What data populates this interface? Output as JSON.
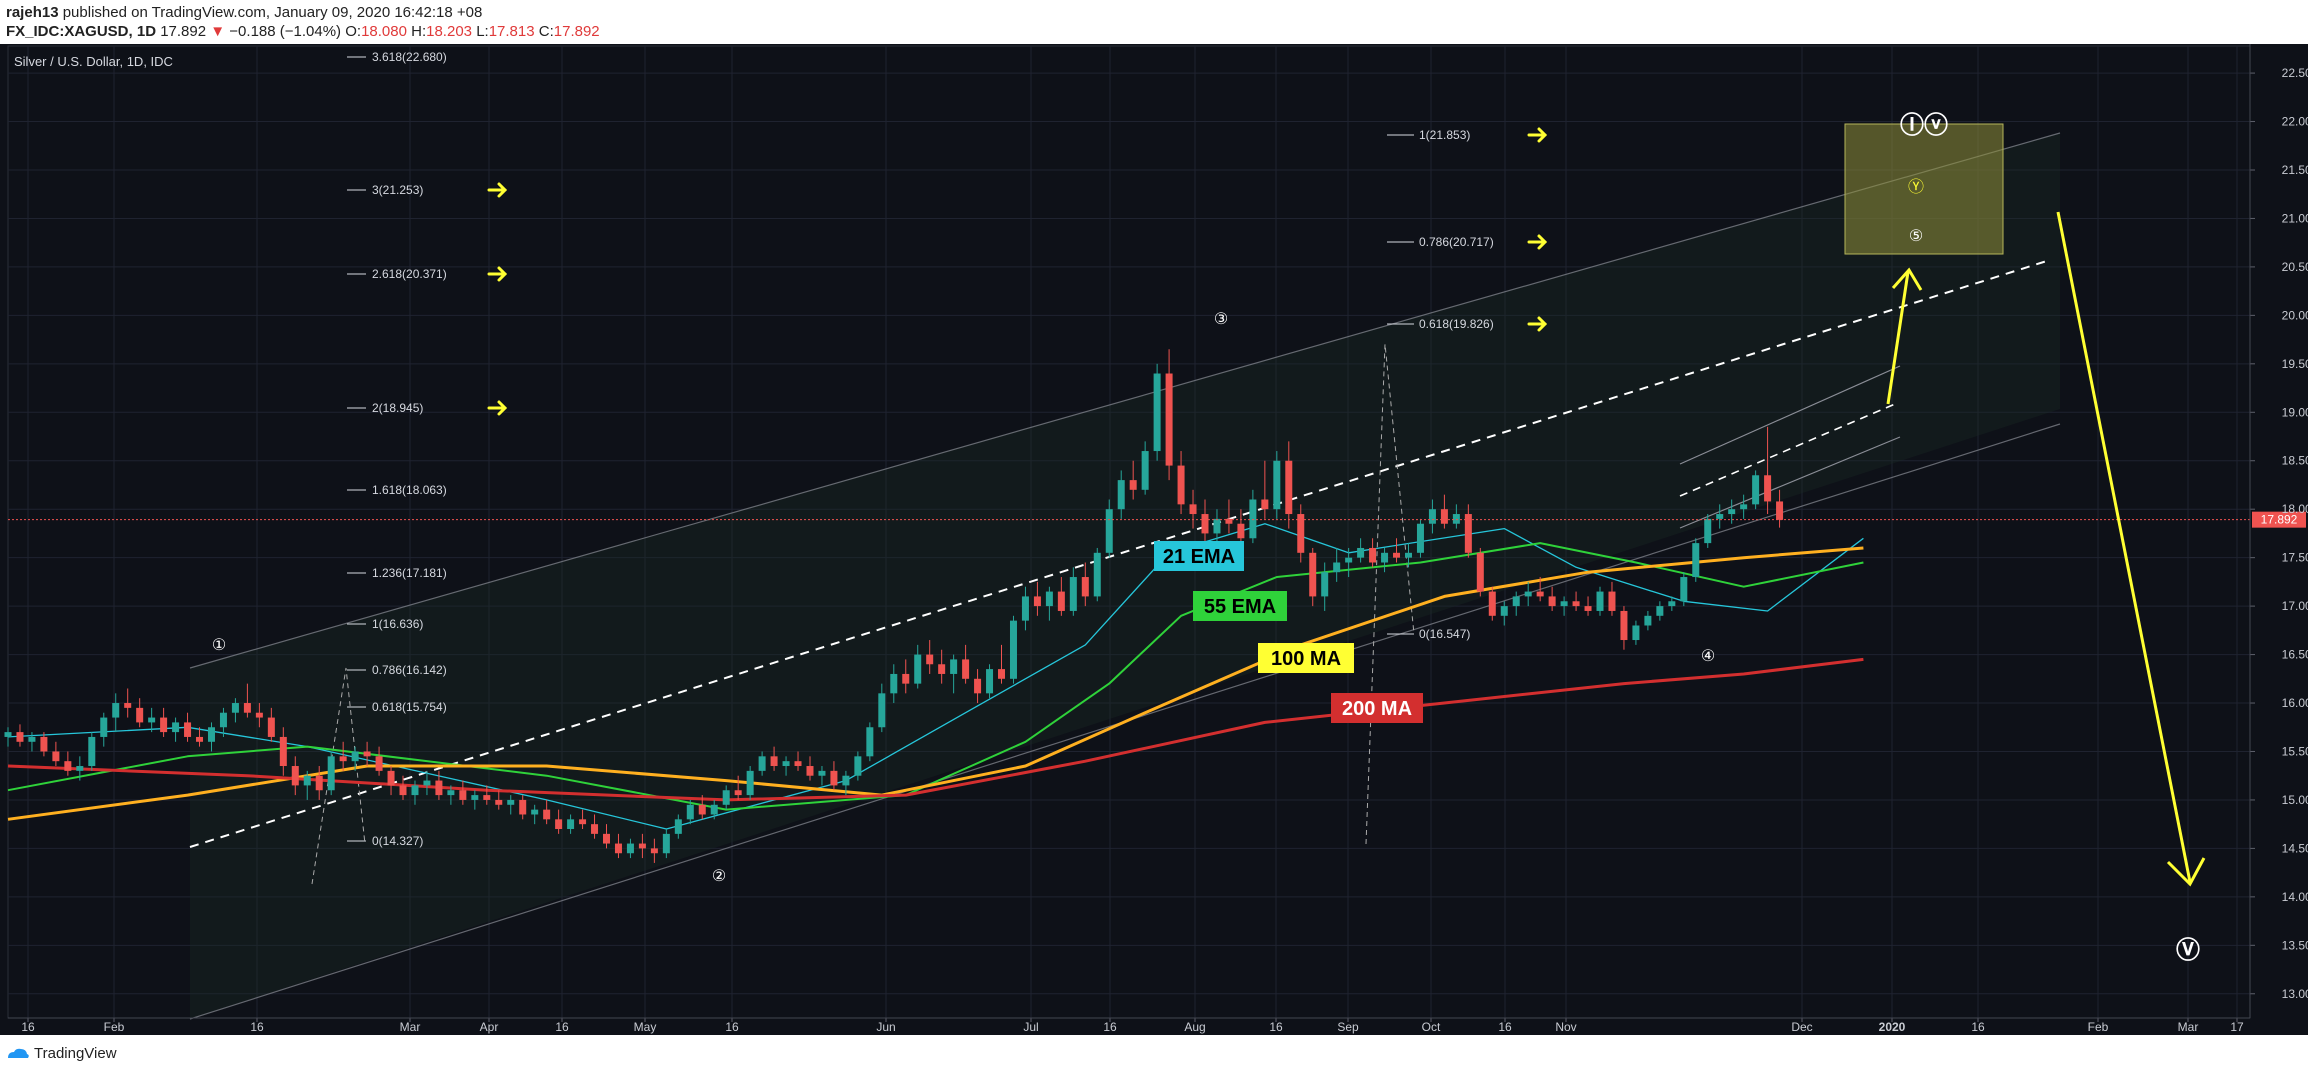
{
  "header": {
    "user": "rajeh13",
    "published_text": "published on TradingView.com, January 09, 2020 16:42:18 +08",
    "symbol": "FX_IDC:XAGUSD, 1D",
    "price": "17.892",
    "change_arrow": "▼",
    "change": "−0.188 (−1.04%)",
    "open_label": "O:",
    "open": "18.080",
    "high_label": "H:",
    "high": "18.203",
    "low_label": "L:",
    "low": "17.813",
    "close_label": "C:",
    "close": "17.892"
  },
  "footer": {
    "brand": "TradingView"
  },
  "colors": {
    "background": "#0e1118",
    "grid": "#1f2330",
    "up": "#26a69a",
    "down": "#ef5350",
    "ema21": "#26c6da",
    "ema55": "#2fd23a",
    "ma100": "#ffb020",
    "ma200": "#d32f2f",
    "annotation": "#ffff33",
    "price_label_bg": "#ef5350"
  },
  "chart_data": {
    "type": "candlestick",
    "title": "Silver / U.S. Dollar, 1D, IDC",
    "xlabel": "",
    "ylabel": "",
    "ylim": [
      12.75,
      22.8
    ],
    "ytick_values": [
      13,
      13.5,
      14,
      14.5,
      15,
      15.5,
      16,
      16.5,
      17,
      17.5,
      18,
      18.5,
      19,
      19.5,
      20,
      20.5,
      21,
      21.5,
      22,
      22.5
    ],
    "ytick_labels": [
      "13.000",
      "13.500",
      "14.000",
      "14.500",
      "15.000",
      "15.500",
      "16.000",
      "16.500",
      "17.000",
      "17.500",
      "18.000",
      "18.500",
      "19.000",
      "19.500",
      "20.000",
      "20.500",
      "21.000",
      "21.500",
      "22.000",
      "22.500"
    ],
    "xtick_labels": [
      "16",
      "Feb",
      "16",
      "Mar",
      "Apr",
      "16",
      "May",
      "16",
      "Jun",
      "Jul",
      "16",
      "Aug",
      "16",
      "Sep",
      "Oct",
      "16",
      "Nov",
      "Dec",
      "2020",
      "16",
      "Feb",
      "Mar",
      "17"
    ],
    "last_price": 17.892,
    "last_price_label": "17.892",
    "grid": true,
    "candles": [
      [
        15.65,
        15.75,
        15.55,
        15.7
      ],
      [
        15.7,
        15.78,
        15.55,
        15.6
      ],
      [
        15.6,
        15.7,
        15.5,
        15.65
      ],
      [
        15.65,
        15.7,
        15.45,
        15.5
      ],
      [
        15.5,
        15.6,
        15.35,
        15.4
      ],
      [
        15.4,
        15.5,
        15.25,
        15.3
      ],
      [
        15.3,
        15.45,
        15.2,
        15.35
      ],
      [
        15.35,
        15.7,
        15.3,
        15.65
      ],
      [
        15.65,
        15.9,
        15.55,
        15.85
      ],
      [
        15.85,
        16.1,
        15.7,
        16.0
      ],
      [
        16.0,
        16.15,
        15.85,
        15.95
      ],
      [
        15.95,
        16.05,
        15.75,
        15.8
      ],
      [
        15.8,
        15.95,
        15.7,
        15.85
      ],
      [
        15.85,
        15.95,
        15.65,
        15.7
      ],
      [
        15.7,
        15.85,
        15.6,
        15.8
      ],
      [
        15.8,
        15.9,
        15.6,
        15.65
      ],
      [
        15.65,
        15.75,
        15.55,
        15.6
      ],
      [
        15.6,
        15.8,
        15.5,
        15.75
      ],
      [
        15.75,
        15.95,
        15.65,
        15.9
      ],
      [
        15.9,
        16.05,
        15.8,
        16.0
      ],
      [
        16.0,
        16.2,
        15.85,
        15.9
      ],
      [
        15.9,
        16.0,
        15.75,
        15.85
      ],
      [
        15.85,
        15.95,
        15.6,
        15.65
      ],
      [
        15.65,
        15.75,
        15.25,
        15.35
      ],
      [
        15.35,
        15.45,
        15.05,
        15.15
      ],
      [
        15.15,
        15.3,
        15.0,
        15.25
      ],
      [
        15.25,
        15.35,
        15.0,
        15.1
      ],
      [
        15.1,
        15.5,
        15.05,
        15.45
      ],
      [
        15.45,
        15.6,
        15.3,
        15.4
      ],
      [
        15.4,
        15.55,
        15.3,
        15.5
      ],
      [
        15.5,
        15.6,
        15.35,
        15.45
      ],
      [
        15.45,
        15.55,
        15.25,
        15.3
      ],
      [
        15.3,
        15.35,
        15.05,
        15.15
      ],
      [
        15.15,
        15.25,
        15.0,
        15.05
      ],
      [
        15.05,
        15.2,
        14.95,
        15.15
      ],
      [
        15.15,
        15.3,
        15.05,
        15.2
      ],
      [
        15.2,
        15.3,
        15.0,
        15.05
      ],
      [
        15.05,
        15.15,
        14.95,
        15.1
      ],
      [
        15.1,
        15.2,
        14.95,
        15.0
      ],
      [
        15.0,
        15.1,
        14.9,
        15.05
      ],
      [
        15.05,
        15.15,
        14.95,
        15.0
      ],
      [
        15.0,
        15.1,
        14.9,
        14.95
      ],
      [
        14.95,
        15.05,
        14.85,
        15.0
      ],
      [
        15.0,
        15.05,
        14.8,
        14.85
      ],
      [
        14.85,
        14.95,
        14.75,
        14.9
      ],
      [
        14.9,
        15.0,
        14.75,
        14.8
      ],
      [
        14.8,
        14.9,
        14.65,
        14.7
      ],
      [
        14.7,
        14.85,
        14.65,
        14.8
      ],
      [
        14.8,
        14.9,
        14.7,
        14.75
      ],
      [
        14.75,
        14.85,
        14.6,
        14.65
      ],
      [
        14.65,
        14.75,
        14.5,
        14.55
      ],
      [
        14.55,
        14.65,
        14.4,
        14.45
      ],
      [
        14.45,
        14.6,
        14.4,
        14.55
      ],
      [
        14.55,
        14.65,
        14.4,
        14.5
      ],
      [
        14.5,
        14.6,
        14.35,
        14.45
      ],
      [
        14.45,
        14.7,
        14.4,
        14.65
      ],
      [
        14.65,
        14.85,
        14.6,
        14.8
      ],
      [
        14.8,
        15.0,
        14.75,
        14.95
      ],
      [
        14.95,
        15.05,
        14.8,
        14.85
      ],
      [
        14.85,
        15.0,
        14.8,
        14.95
      ],
      [
        14.95,
        15.15,
        14.9,
        15.1
      ],
      [
        15.1,
        15.25,
        15.0,
        15.05
      ],
      [
        15.05,
        15.35,
        15.0,
        15.3
      ],
      [
        15.3,
        15.5,
        15.25,
        15.45
      ],
      [
        15.45,
        15.55,
        15.3,
        15.35
      ],
      [
        15.35,
        15.45,
        15.25,
        15.4
      ],
      [
        15.4,
        15.5,
        15.3,
        15.35
      ],
      [
        15.35,
        15.45,
        15.2,
        15.25
      ],
      [
        15.25,
        15.35,
        15.15,
        15.3
      ],
      [
        15.3,
        15.4,
        15.1,
        15.15
      ],
      [
        15.15,
        15.3,
        15.05,
        15.25
      ],
      [
        15.25,
        15.5,
        15.2,
        15.45
      ],
      [
        15.45,
        15.8,
        15.4,
        15.75
      ],
      [
        15.75,
        16.2,
        15.7,
        16.1
      ],
      [
        16.1,
        16.4,
        16.0,
        16.3
      ],
      [
        16.3,
        16.45,
        16.1,
        16.2
      ],
      [
        16.2,
        16.6,
        16.15,
        16.5
      ],
      [
        16.5,
        16.65,
        16.3,
        16.4
      ],
      [
        16.4,
        16.55,
        16.2,
        16.3
      ],
      [
        16.3,
        16.5,
        16.1,
        16.45
      ],
      [
        16.45,
        16.6,
        16.2,
        16.25
      ],
      [
        16.25,
        16.35,
        16.0,
        16.1
      ],
      [
        16.1,
        16.4,
        16.05,
        16.35
      ],
      [
        16.35,
        16.6,
        16.2,
        16.25
      ],
      [
        16.25,
        16.9,
        16.2,
        16.85
      ],
      [
        16.85,
        17.2,
        16.75,
        17.1
      ],
      [
        17.1,
        17.25,
        16.9,
        17.0
      ],
      [
        17.0,
        17.2,
        16.85,
        17.15
      ],
      [
        17.15,
        17.3,
        16.9,
        16.95
      ],
      [
        16.95,
        17.4,
        16.9,
        17.3
      ],
      [
        17.3,
        17.45,
        17.0,
        17.1
      ],
      [
        17.1,
        17.6,
        17.05,
        17.55
      ],
      [
        17.55,
        18.1,
        17.5,
        18.0
      ],
      [
        18.0,
        18.4,
        17.9,
        18.3
      ],
      [
        18.3,
        18.5,
        18.1,
        18.2
      ],
      [
        18.2,
        18.7,
        18.15,
        18.6
      ],
      [
        18.6,
        19.5,
        18.5,
        19.4
      ],
      [
        19.4,
        19.65,
        18.3,
        18.45
      ],
      [
        18.45,
        18.6,
        17.95,
        18.05
      ],
      [
        18.05,
        18.2,
        17.8,
        17.95
      ],
      [
        17.95,
        18.1,
        17.6,
        17.75
      ],
      [
        17.75,
        18.0,
        17.5,
        17.9
      ],
      [
        17.9,
        18.1,
        17.75,
        17.85
      ],
      [
        17.85,
        18.0,
        17.6,
        17.7
      ],
      [
        17.7,
        18.2,
        17.65,
        18.1
      ],
      [
        18.1,
        18.5,
        17.9,
        18.0
      ],
      [
        18.0,
        18.6,
        17.9,
        18.5
      ],
      [
        18.5,
        18.7,
        17.8,
        17.95
      ],
      [
        17.95,
        18.05,
        17.45,
        17.55
      ],
      [
        17.55,
        17.6,
        17.0,
        17.1
      ],
      [
        17.1,
        17.45,
        16.95,
        17.35
      ],
      [
        17.35,
        17.6,
        17.25,
        17.45
      ],
      [
        17.45,
        17.6,
        17.3,
        17.5
      ],
      [
        17.5,
        17.7,
        17.45,
        17.6
      ],
      [
        17.6,
        17.7,
        17.4,
        17.45
      ],
      [
        17.45,
        17.6,
        17.35,
        17.55
      ],
      [
        17.55,
        17.7,
        17.45,
        17.5
      ],
      [
        17.5,
        17.65,
        17.4,
        17.55
      ],
      [
        17.55,
        17.9,
        17.5,
        17.85
      ],
      [
        17.85,
        18.1,
        17.75,
        18.0
      ],
      [
        18.0,
        18.15,
        17.8,
        17.85
      ],
      [
        17.85,
        18.05,
        17.8,
        17.95
      ],
      [
        17.95,
        18.05,
        17.5,
        17.55
      ],
      [
        17.55,
        17.6,
        17.1,
        17.15
      ],
      [
        17.15,
        17.2,
        16.85,
        16.9
      ],
      [
        16.9,
        17.05,
        16.8,
        17.0
      ],
      [
        17.0,
        17.15,
        16.9,
        17.1
      ],
      [
        17.1,
        17.25,
        17.0,
        17.15
      ],
      [
        17.15,
        17.3,
        17.05,
        17.1
      ],
      [
        17.1,
        17.2,
        16.95,
        17.0
      ],
      [
        17.0,
        17.1,
        16.9,
        17.05
      ],
      [
        17.05,
        17.15,
        16.95,
        17.0
      ],
      [
        17.0,
        17.1,
        16.9,
        16.95
      ],
      [
        16.95,
        17.2,
        16.9,
        17.15
      ],
      [
        17.15,
        17.25,
        16.9,
        16.95
      ],
      [
        16.95,
        17.0,
        16.55,
        16.65
      ],
      [
        16.65,
        16.85,
        16.6,
        16.8
      ],
      [
        16.8,
        16.95,
        16.75,
        16.9
      ],
      [
        16.9,
        17.05,
        16.85,
        17.0
      ],
      [
        17.0,
        17.1,
        16.95,
        17.05
      ],
      [
        17.05,
        17.35,
        17.0,
        17.3
      ],
      [
        17.3,
        17.7,
        17.25,
        17.65
      ],
      [
        17.65,
        17.95,
        17.6,
        17.9
      ],
      [
        17.9,
        18.05,
        17.8,
        17.95
      ],
      [
        17.95,
        18.1,
        17.85,
        18.0
      ],
      [
        18.0,
        18.15,
        17.9,
        18.05
      ],
      [
        18.05,
        18.4,
        18.0,
        18.35
      ],
      [
        18.35,
        18.85,
        17.95,
        18.08
      ],
      [
        18.08,
        18.2,
        17.81,
        17.89
      ]
    ],
    "series": [
      {
        "name": "21 EMA",
        "values": [
          [
            0,
            15.65
          ],
          [
            15,
            15.75
          ],
          [
            25,
            15.55
          ],
          [
            45,
            15.0
          ],
          [
            55,
            14.7
          ],
          [
            70,
            15.2
          ],
          [
            80,
            15.9
          ],
          [
            90,
            16.6
          ],
          [
            97,
            17.55
          ],
          [
            105,
            17.85
          ],
          [
            112,
            17.55
          ],
          [
            125,
            17.8
          ],
          [
            131,
            17.4
          ],
          [
            140,
            17.05
          ],
          [
            147,
            16.95
          ],
          [
            155,
            17.7
          ]
        ]
      },
      {
        "name": "55 EMA",
        "values": [
          [
            0,
            15.1
          ],
          [
            15,
            15.45
          ],
          [
            25,
            15.55
          ],
          [
            45,
            15.25
          ],
          [
            60,
            14.9
          ],
          [
            75,
            15.05
          ],
          [
            85,
            15.6
          ],
          [
            92,
            16.2
          ],
          [
            98,
            16.9
          ],
          [
            106,
            17.3
          ],
          [
            118,
            17.45
          ],
          [
            128,
            17.65
          ],
          [
            136,
            17.45
          ],
          [
            145,
            17.2
          ],
          [
            155,
            17.45
          ]
        ]
      },
      {
        "name": "100 MA",
        "values": [
          [
            0,
            14.8
          ],
          [
            15,
            15.05
          ],
          [
            30,
            15.35
          ],
          [
            45,
            15.35
          ],
          [
            60,
            15.2
          ],
          [
            73,
            15.05
          ],
          [
            85,
            15.35
          ],
          [
            95,
            15.9
          ],
          [
            108,
            16.6
          ],
          [
            120,
            17.1
          ],
          [
            132,
            17.35
          ],
          [
            145,
            17.5
          ],
          [
            155,
            17.6
          ]
        ]
      },
      {
        "name": "200 MA",
        "values": [
          [
            0,
            15.35
          ],
          [
            20,
            15.25
          ],
          [
            40,
            15.1
          ],
          [
            60,
            15.0
          ],
          [
            75,
            15.05
          ],
          [
            90,
            15.4
          ],
          [
            105,
            15.8
          ],
          [
            120,
            16.0
          ],
          [
            135,
            16.2
          ],
          [
            145,
            16.3
          ],
          [
            155,
            16.45
          ]
        ]
      }
    ],
    "labels": [
      {
        "text": "21 EMA",
        "color": "#26c6da"
      },
      {
        "text": "55 EMA",
        "color": "#2fd23a"
      },
      {
        "text": "100 MA",
        "color": "#ffff33"
      },
      {
        "text": "200 MA",
        "color": "#d32f2f"
      }
    ],
    "fib_left": [
      "3.618(22.680)",
      "3(21.253)",
      "2.618(20.371)",
      "2(18.945)",
      "1.618(18.063)",
      "1.236(17.181)",
      "1(16.636)",
      "0.786(16.142)",
      "0.618(15.754)",
      "0(14.327)"
    ],
    "fib_right": [
      "1(21.853)",
      "0.786(20.717)",
      "0.618(19.826)",
      "0(16.547)"
    ],
    "wave_labels": [
      "①",
      "②",
      "③",
      "④",
      "Ⓨ",
      "⑤",
      "Ⓘⓥ",
      "Ⓥ"
    ]
  }
}
